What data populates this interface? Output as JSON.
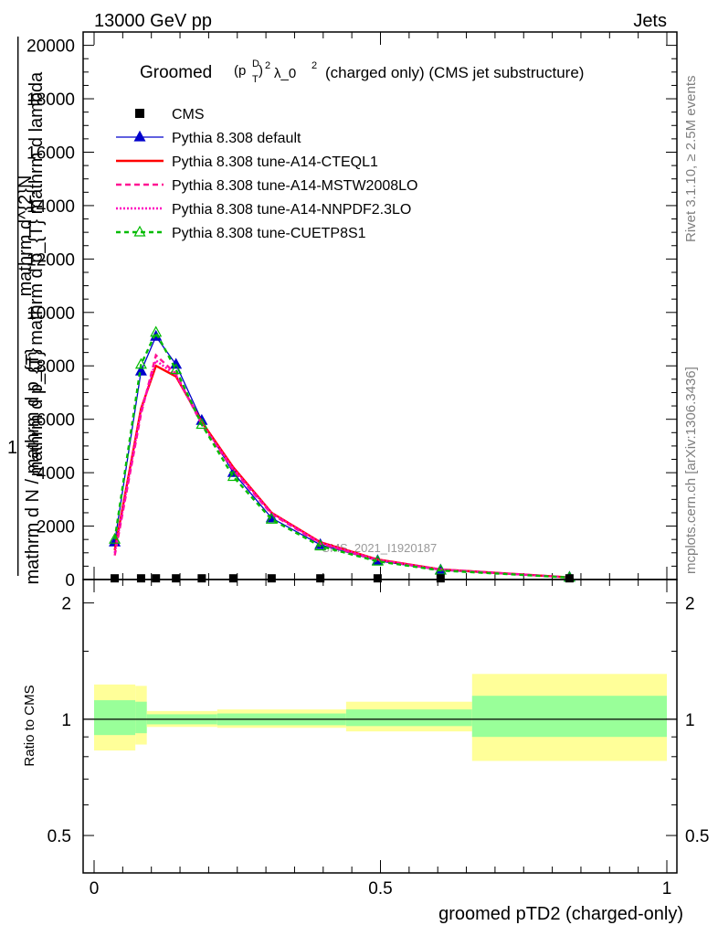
{
  "header": {
    "beam": "13000 GeV pp",
    "process": "Jets"
  },
  "side_labels": {
    "rivet": "Rivet 3.1.10, ≥ 2.5M events",
    "mcplots": "mcplots.cern.ch [arXiv:1306.3436]"
  },
  "chart_data": {
    "type": "line",
    "title": "Groomed (p_T^D)^2 λ_0^2  (charged only) (CMS jet substructure)",
    "title_parts": {
      "prefix": "Groomed",
      "pt": "(p",
      "sup_d": "D",
      "sub_t": "T",
      "close": ")",
      "sup_2a": "2",
      "lambda": "λ_0",
      "sup_2b": "2",
      "suffix": "(charged only) (CMS jet substructure)"
    },
    "watermark": "CMS_2021_I1920187",
    "xlabel": "groomed pTD2 (charged-only)",
    "ylabel_top": "1",
    "ylabel_upper": "mathrm d^{2}N",
    "ylabel_lower": "mathrm d p_{T} mathrm d p_{T} mathrm d lambda",
    "ylabel_denominator": "mathrm d N / mathrm d p_{T}",
    "ratio_ylabel": "Ratio to CMS",
    "xlim": [
      0,
      1
    ],
    "ylim": [
      0,
      20500
    ],
    "ratio_ylim": [
      0.4,
      2.3
    ],
    "x_ticks": [
      "0",
      "0.5",
      "1"
    ],
    "x_tick_values": [
      0,
      0.5,
      1
    ],
    "y_tick_labels": [
      "0",
      "2000",
      "4000",
      "6000",
      "8000",
      "10000",
      "12000",
      "14000",
      "16000",
      "18000",
      "20000"
    ],
    "y_tick_values": [
      0,
      2000,
      4000,
      6000,
      8000,
      10000,
      12000,
      14000,
      16000,
      18000,
      20000
    ],
    "ratio_tick_labels": [
      "0.5",
      "1",
      "2"
    ],
    "ratio_tick_values": [
      0.5,
      1,
      2
    ],
    "bin_edges": [
      0,
      0.072,
      0.092,
      0.13,
      0.16,
      0.215,
      0.27,
      0.35,
      0.44,
      0.55,
      0.66,
      1.0
    ],
    "data": {
      "name": "CMS",
      "x": [
        0.036,
        0.082,
        0.108,
        0.143,
        0.188,
        0.243,
        0.31,
        0.395,
        0.495,
        0.605,
        0.83
      ],
      "y": [
        10,
        10,
        10,
        10,
        10,
        10,
        10,
        10,
        10,
        10,
        10
      ]
    },
    "series": [
      {
        "name": "Pythia 8.308 default",
        "color": "#0000cc",
        "style": "solid-triangle",
        "x": [
          0.036,
          0.082,
          0.108,
          0.143,
          0.188,
          0.243,
          0.31,
          0.395,
          0.495,
          0.605,
          0.83
        ],
        "y": [
          1400,
          7800,
          9100,
          8050,
          5950,
          4000,
          2300,
          1300,
          700,
          350,
          80
        ]
      },
      {
        "name": "Pythia 8.308 tune-A14-CTEQL1",
        "color": "#ff0000",
        "style": "solid",
        "x": [
          0.036,
          0.082,
          0.108,
          0.143,
          0.188,
          0.243,
          0.31,
          0.395,
          0.495,
          0.605,
          0.83
        ],
        "y": [
          1100,
          6400,
          8000,
          7600,
          5900,
          4200,
          2500,
          1400,
          750,
          380,
          80
        ]
      },
      {
        "name": "Pythia 8.308 tune-A14-MSTW2008LO",
        "color": "#ff1493",
        "style": "dashed",
        "x": [
          0.036,
          0.082,
          0.108,
          0.143,
          0.188,
          0.243,
          0.31,
          0.395,
          0.495,
          0.605,
          0.83
        ],
        "y": [
          900,
          6200,
          8400,
          7700,
          5800,
          4100,
          2450,
          1350,
          720,
          370,
          78
        ]
      },
      {
        "name": "Pythia 8.308 tune-A14-NNPDF2.3LO",
        "color": "#ff00bf",
        "style": "dotted",
        "x": [
          0.036,
          0.082,
          0.108,
          0.143,
          0.188,
          0.243,
          0.31,
          0.395,
          0.495,
          0.605,
          0.83
        ],
        "y": [
          1000,
          6300,
          8200,
          7650,
          5850,
          4150,
          2480,
          1380,
          740,
          375,
          79
        ]
      },
      {
        "name": "Pythia 8.308 tune-CUETP8S1",
        "color": "#00bb00",
        "style": "dashed-open-triangle",
        "x": [
          0.036,
          0.082,
          0.108,
          0.143,
          0.188,
          0.243,
          0.31,
          0.395,
          0.495,
          0.605,
          0.83
        ],
        "y": [
          1500,
          8050,
          9250,
          7850,
          5800,
          3850,
          2250,
          1250,
          680,
          340,
          75
        ]
      }
    ],
    "ratio_bands": {
      "bins": [
        [
          0,
          0.072
        ],
        [
          0.072,
          0.092
        ],
        [
          0.092,
          0.215
        ],
        [
          0.215,
          0.44
        ],
        [
          0.44,
          0.66
        ],
        [
          0.66,
          1.0
        ]
      ],
      "inner": [
        [
          0.91,
          1.12
        ],
        [
          0.92,
          1.11
        ],
        [
          0.97,
          1.03
        ],
        [
          0.965,
          1.035
        ],
        [
          0.96,
          1.06
        ],
        [
          0.9,
          1.15
        ]
      ],
      "outer": [
        [
          0.83,
          1.23
        ],
        [
          0.86,
          1.22
        ],
        [
          0.955,
          1.05
        ],
        [
          0.95,
          1.06
        ],
        [
          0.93,
          1.11
        ],
        [
          0.78,
          1.31
        ]
      ]
    },
    "colors": {
      "band_inner": "#99ff99",
      "band_outer": "#ffff99"
    }
  }
}
